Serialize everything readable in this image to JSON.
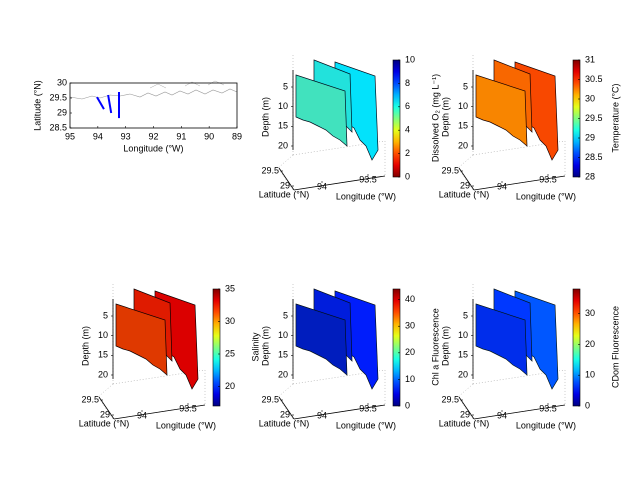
{
  "chart_data": [
    {
      "type": "map",
      "xlabel": "Longitude (°W)",
      "ylabel": "Latitude (°N)",
      "xlim": [
        95,
        89
      ],
      "xticks": [
        95,
        94,
        93,
        92,
        91,
        90,
        89
      ],
      "ylim": [
        28.5,
        30
      ],
      "yticks": [
        28.5,
        29,
        29.5,
        30
      ],
      "series": [
        {
          "color": "#0000ff",
          "x": [
            94.03,
            93.78
          ],
          "y": [
            29.53,
            29.13
          ]
        },
        {
          "color": "#0000ff",
          "x": [
            93.63,
            93.52
          ],
          "y": [
            29.6,
            29.0
          ]
        },
        {
          "color": "#0000ff",
          "x": [
            93.24,
            93.24
          ],
          "y": [
            29.7,
            28.83
          ]
        }
      ]
    },
    {
      "type": "curtain3d",
      "zlabel": "Depth (m)",
      "ylabel": "Latitude (°N)",
      "xlabel": "Longitude (°W)",
      "zticks": [
        5,
        10,
        15,
        20
      ],
      "yticks": [
        29.5,
        29
      ],
      "xticks": [
        94,
        93.5
      ],
      "colorbar_label": "Dissolved O₂ (mg L⁻¹)",
      "colormap": "jet_r",
      "clim": [
        0,
        10
      ],
      "cticks": [
        0,
        2,
        4,
        6,
        8,
        10
      ]
    },
    {
      "type": "curtain3d",
      "zlabel": "Depth (m)",
      "ylabel": "Latitude (°N)",
      "xlabel": "Longitude (°W)",
      "zticks": [
        5,
        10,
        15,
        20
      ],
      "yticks": [
        29.5,
        29
      ],
      "xticks": [
        94,
        93.5
      ],
      "colorbar_label": "Temperature (°C)",
      "colormap": "jet",
      "clim": [
        28,
        31
      ],
      "cticks": [
        28,
        28.5,
        29,
        29.5,
        30,
        30.5,
        31
      ]
    },
    {
      "type": "curtain3d",
      "zlabel": "Depth (m)",
      "ylabel": "Latitude (°N)",
      "xlabel": "Longitude (°W)",
      "zticks": [
        5,
        10,
        15,
        20
      ],
      "yticks": [
        29.5,
        29
      ],
      "xticks": [
        94,
        93.5
      ],
      "colorbar_label": "Salinity",
      "colormap": "jet",
      "clim": [
        17,
        35
      ],
      "cticks": [
        20,
        25,
        30,
        35
      ]
    },
    {
      "type": "curtain3d",
      "zlabel": "Depth (m)",
      "ylabel": "Latitude (°N)",
      "xlabel": "Longitude (°W)",
      "zticks": [
        5,
        10,
        15,
        20
      ],
      "yticks": [
        29.5,
        29
      ],
      "xticks": [
        94,
        93.5
      ],
      "colorbar_label": "Chl a Fluorescence",
      "colormap": "jet",
      "clim": [
        0,
        44
      ],
      "cticks": [
        0,
        10,
        20,
        30,
        40
      ]
    },
    {
      "type": "curtain3d",
      "zlabel": "Depth (m)",
      "ylabel": "Latitude (°N)",
      "xlabel": "Longitude (°W)",
      "zticks": [
        5,
        10,
        15,
        20
      ],
      "yticks": [
        29.5,
        29
      ],
      "xticks": [
        94,
        93.5
      ],
      "colorbar_label": "CDom Fluorescence",
      "colormap": "jet",
      "clim": [
        0,
        38
      ],
      "cticks": [
        0,
        10,
        20,
        30
      ]
    }
  ]
}
